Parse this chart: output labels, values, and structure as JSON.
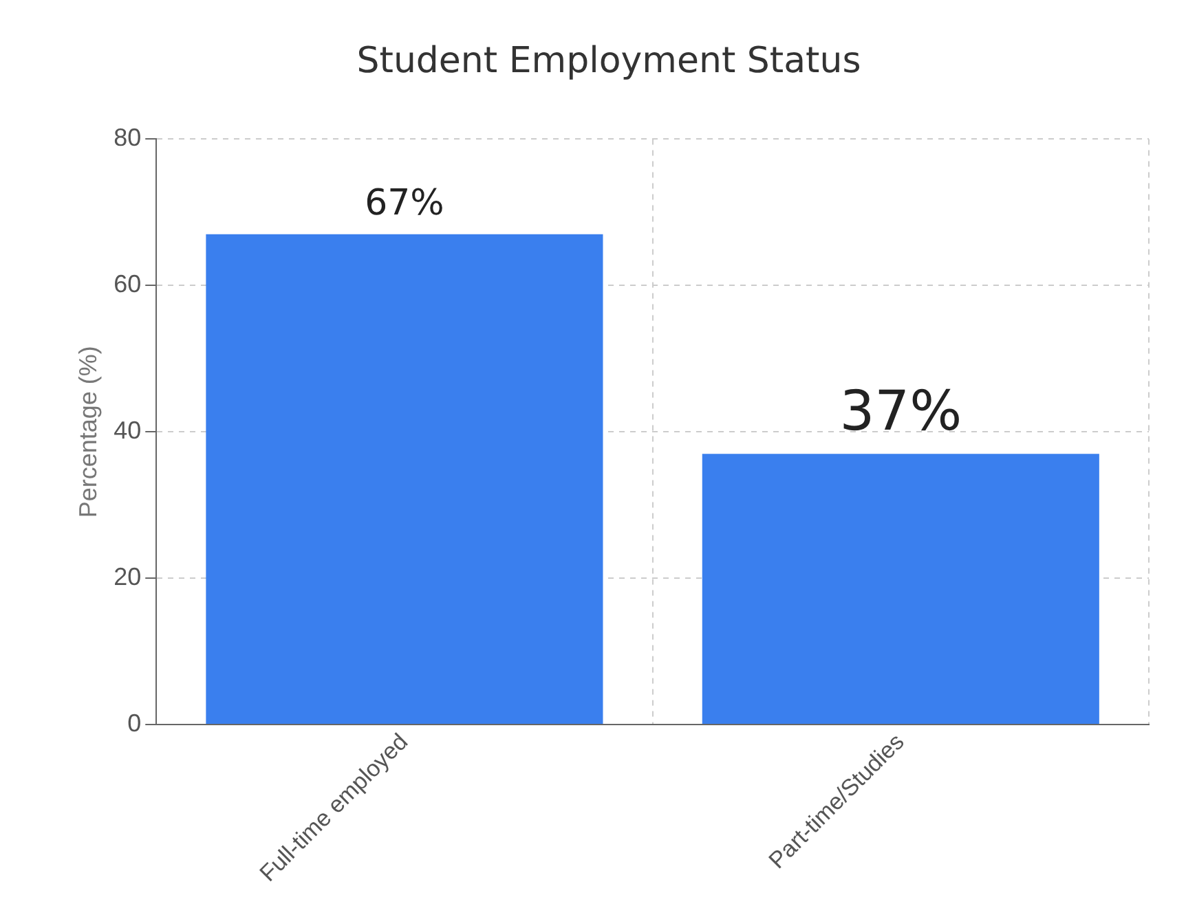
{
  "chart_data": {
    "type": "bar",
    "title": "Student Employment Status",
    "ylabel": "Percentage (%)",
    "categories": [
      "Full-time employed",
      "Part-time/Studies"
    ],
    "values": [
      67,
      37
    ],
    "value_labels": [
      "67%",
      "37%"
    ],
    "color": "#3a7fee",
    "ylim": [
      0,
      80
    ],
    "yticks": [
      0,
      20,
      40,
      60,
      80
    ],
    "grid": true
  }
}
